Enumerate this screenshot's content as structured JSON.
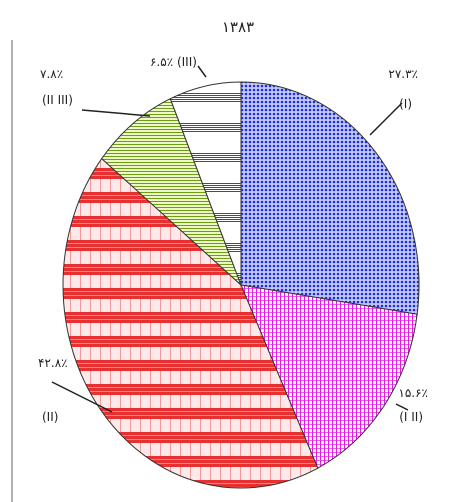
{
  "chart_data": {
    "type": "pie",
    "title": "۱۳۸۳",
    "slices": [
      {
        "label": "(I)",
        "value": 27.3,
        "value_label": "۲۷.۳٪",
        "color": "#1d2fd6",
        "pattern": "dots"
      },
      {
        "label": "(I II)",
        "value": 15.6,
        "value_label": "۱۵.۶٪",
        "color": "#e01ce0",
        "pattern": "grid"
      },
      {
        "label": "(II)",
        "value": 42.8,
        "value_label": "۴۲.۸٪",
        "color": "#e02020",
        "pattern": "stripes"
      },
      {
        "label": "(II III)",
        "value": 7.8,
        "value_label": "۷.۸٪",
        "color": "#8bbf2b",
        "pattern": "diag"
      },
      {
        "label": "(III)",
        "value": 6.5,
        "value_label": "۶.۵٪",
        "color": "#7b2a8a",
        "pattern": "hbands"
      }
    ]
  }
}
